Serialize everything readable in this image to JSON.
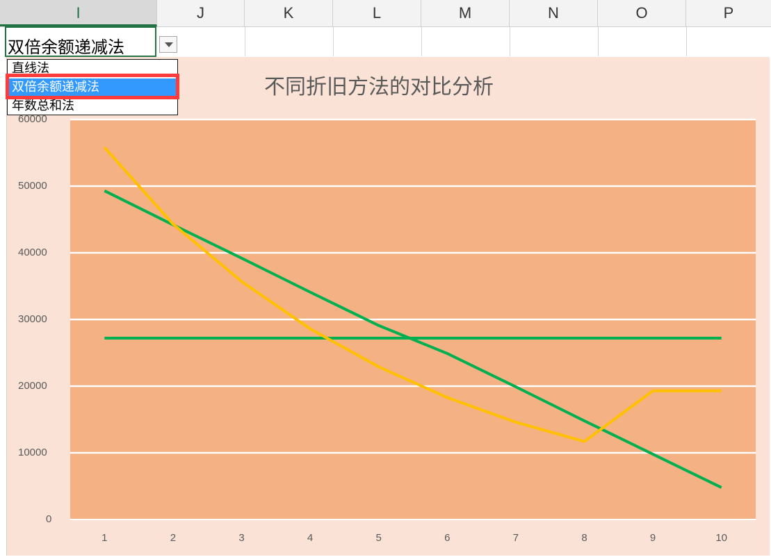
{
  "columns": [
    "I",
    "J",
    "K",
    "L",
    "M",
    "N",
    "O",
    "P"
  ],
  "active_column": "I",
  "cell": {
    "value": "双倍余额递减法"
  },
  "dropdown": {
    "options": [
      "直线法",
      "双倍余额递减法",
      "年数总和法"
    ],
    "selected": "双倍余额递减法"
  },
  "chart_data": {
    "type": "line",
    "title": "不同折旧方法的对比分析",
    "categories": [
      1,
      2,
      3,
      4,
      5,
      6,
      7,
      8,
      9,
      10
    ],
    "ylim": [
      0,
      60000
    ],
    "yticks": [
      0,
      10000,
      20000,
      30000,
      40000,
      50000,
      60000
    ],
    "grid": true,
    "series": [
      {
        "color": "#00b050",
        "values": [
          27200,
          27200,
          27200,
          27200,
          27200,
          27200,
          27200,
          27200,
          27200,
          27200
        ]
      },
      {
        "color": "#00b050",
        "values": [
          49300,
          44200,
          39200,
          34100,
          29100,
          24900,
          19900,
          14800,
          9800,
          4800
        ]
      },
      {
        "color": "#ffc000",
        "values": [
          55800,
          44300,
          35700,
          28600,
          22900,
          18300,
          14600,
          11700,
          19300,
          19300
        ]
      }
    ],
    "plot_bg": "#f4b183",
    "chart_bg": "#fae3d6"
  }
}
